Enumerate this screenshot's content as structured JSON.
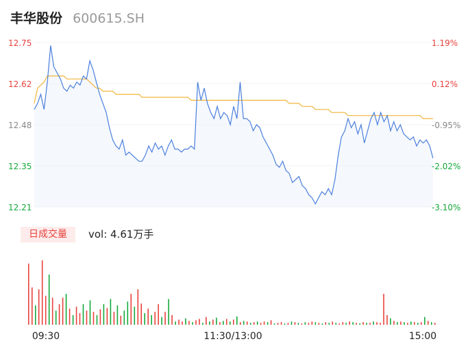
{
  "header": {
    "name": "丰华股份",
    "code": "600615.SH"
  },
  "colors": {
    "price_line": "#4a7fdd",
    "avg_line": "#f1b53b",
    "up": "#e8413d",
    "down": "#15a83c",
    "neutral": "#888888"
  },
  "volume": {
    "badge": "日成交量",
    "label": "vol: 4.61万手"
  },
  "chart_data": {
    "type": "line",
    "title": "",
    "y_left_ticks": [
      "12.75",
      "12.62",
      "12.48",
      "12.35",
      "12.21"
    ],
    "y_right_ticks": [
      "1.19%",
      "0.12%",
      "-0.95%",
      "-2.02%",
      "-3.10%"
    ],
    "x_ticks": [
      "09:30",
      "11:30/13:00",
      "15:00"
    ],
    "ylim": [
      12.21,
      12.75
    ],
    "series": [
      {
        "role": "price",
        "values": [
          12.53,
          12.55,
          12.58,
          12.53,
          12.62,
          12.74,
          12.67,
          12.65,
          12.63,
          12.6,
          12.59,
          12.61,
          12.6,
          12.62,
          12.61,
          12.64,
          12.63,
          12.69,
          12.66,
          12.62,
          12.58,
          12.55,
          12.52,
          12.47,
          12.43,
          12.41,
          12.4,
          12.43,
          12.38,
          12.39,
          12.38,
          12.37,
          12.36,
          12.36,
          12.38,
          12.41,
          12.39,
          12.42,
          12.4,
          12.41,
          12.38,
          12.41,
          12.43,
          12.4,
          12.4,
          12.39,
          12.4,
          12.4,
          12.41,
          12.4,
          12.62,
          12.56,
          12.6,
          12.55,
          12.52,
          12.5,
          12.54,
          12.5,
          12.52,
          12.51,
          12.48,
          12.54,
          12.5,
          12.62,
          12.5,
          12.5,
          12.49,
          12.46,
          12.48,
          12.47,
          12.44,
          12.42,
          12.4,
          12.38,
          12.35,
          12.34,
          12.36,
          12.33,
          12.32,
          12.29,
          12.3,
          12.31,
          12.28,
          12.27,
          12.25,
          12.24,
          12.22,
          12.24,
          12.26,
          12.25,
          12.27,
          12.25,
          12.3,
          12.38,
          12.44,
          12.46,
          12.5,
          12.47,
          12.49,
          12.45,
          12.48,
          12.42,
          12.46,
          12.5,
          12.52,
          12.48,
          12.52,
          12.49,
          12.51,
          12.46,
          12.49,
          12.46,
          12.48,
          12.45,
          12.44,
          12.43,
          12.44,
          12.41,
          12.43,
          12.42,
          12.43,
          12.41,
          12.37
        ]
      },
      {
        "role": "average",
        "values": [
          12.55,
          12.6,
          12.61,
          12.62,
          12.64,
          12.64,
          12.64,
          12.64,
          12.64,
          12.64,
          12.63,
          12.63,
          12.63,
          12.63,
          12.63,
          12.63,
          12.63,
          12.62,
          12.61,
          12.6,
          12.6,
          12.59,
          12.59,
          12.59,
          12.59,
          12.58,
          12.58,
          12.58,
          12.58,
          12.58,
          12.58,
          12.58,
          12.58,
          12.57,
          12.57,
          12.57,
          12.57,
          12.57,
          12.57,
          12.57,
          12.57,
          12.57,
          12.57,
          12.57,
          12.57,
          12.57,
          12.57,
          12.57,
          12.56,
          12.56,
          12.56,
          12.56,
          12.56,
          12.56,
          12.56,
          12.56,
          12.56,
          12.56,
          12.56,
          12.56,
          12.56,
          12.56,
          12.56,
          12.56,
          12.56,
          12.56,
          12.56,
          12.56,
          12.56,
          12.56,
          12.56,
          12.56,
          12.56,
          12.56,
          12.56,
          12.56,
          12.56,
          12.56,
          12.55,
          12.55,
          12.55,
          12.55,
          12.54,
          12.54,
          12.54,
          12.54,
          12.53,
          12.53,
          12.53,
          12.53,
          12.53,
          12.52,
          12.52,
          12.52,
          12.52,
          12.52,
          12.51,
          12.51,
          12.51,
          12.51,
          12.51,
          12.51,
          12.51,
          12.51,
          12.51,
          12.51,
          12.51,
          12.51,
          12.51,
          12.51,
          12.51,
          12.51,
          12.51,
          12.51,
          12.51,
          12.51,
          12.51,
          12.51,
          12.51,
          12.5,
          12.5,
          12.5,
          12.5
        ]
      }
    ],
    "volume_bars": [
      {
        "v": 0.95,
        "d": 1
      },
      {
        "v": 0.58,
        "d": 1
      },
      {
        "v": 0.3,
        "d": -1
      },
      {
        "v": 0.55,
        "d": 1
      },
      {
        "v": 1.0,
        "d": 1
      },
      {
        "v": 0.45,
        "d": 1
      },
      {
        "v": 0.78,
        "d": -1
      },
      {
        "v": 0.42,
        "d": 1
      },
      {
        "v": 0.22,
        "d": -1
      },
      {
        "v": 0.32,
        "d": 1
      },
      {
        "v": 0.42,
        "d": 1
      },
      {
        "v": 0.48,
        "d": -1
      },
      {
        "v": 0.25,
        "d": 1
      },
      {
        "v": 0.15,
        "d": -1
      },
      {
        "v": 0.28,
        "d": 1
      },
      {
        "v": 0.18,
        "d": 1
      },
      {
        "v": 0.32,
        "d": -1
      },
      {
        "v": 0.22,
        "d": 1
      },
      {
        "v": 0.38,
        "d": -1
      },
      {
        "v": 0.2,
        "d": 1
      },
      {
        "v": 0.15,
        "d": -1
      },
      {
        "v": 0.24,
        "d": 1
      },
      {
        "v": 0.32,
        "d": -1
      },
      {
        "v": 0.26,
        "d": 1
      },
      {
        "v": 0.4,
        "d": -1
      },
      {
        "v": 0.2,
        "d": 1
      },
      {
        "v": 0.3,
        "d": -1
      },
      {
        "v": 0.14,
        "d": 1
      },
      {
        "v": 0.22,
        "d": -1
      },
      {
        "v": 0.36,
        "d": -1
      },
      {
        "v": 0.48,
        "d": 1
      },
      {
        "v": 0.28,
        "d": -1
      },
      {
        "v": 0.55,
        "d": 1
      },
      {
        "v": 0.33,
        "d": 1
      },
      {
        "v": 0.18,
        "d": -1
      },
      {
        "v": 0.25,
        "d": 1
      },
      {
        "v": 0.15,
        "d": -1
      },
      {
        "v": 0.2,
        "d": 1
      },
      {
        "v": 0.32,
        "d": 1
      },
      {
        "v": 0.12,
        "d": -1
      },
      {
        "v": 0.2,
        "d": 1
      },
      {
        "v": 0.4,
        "d": -1
      },
      {
        "v": 0.15,
        "d": 1
      },
      {
        "v": 0.05,
        "d": -1
      },
      {
        "v": 0.08,
        "d": 1
      },
      {
        "v": 0.05,
        "d": 1
      },
      {
        "v": 0.1,
        "d": -1
      },
      {
        "v": 0.06,
        "d": 1
      },
      {
        "v": 0.04,
        "d": -1
      },
      {
        "v": 0.07,
        "d": 1
      },
      {
        "v": 0.09,
        "d": 1
      },
      {
        "v": 0.03,
        "d": -1
      },
      {
        "v": 0.12,
        "d": 1
      },
      {
        "v": 0.05,
        "d": -1
      },
      {
        "v": 0.08,
        "d": 1
      },
      {
        "v": 0.11,
        "d": -1
      },
      {
        "v": 0.04,
        "d": 1
      },
      {
        "v": 0.06,
        "d": -1
      },
      {
        "v": 0.09,
        "d": 1
      },
      {
        "v": 0.05,
        "d": -1
      },
      {
        "v": 0.08,
        "d": 1
      },
      {
        "v": 0.13,
        "d": -1
      },
      {
        "v": 0.04,
        "d": 1
      },
      {
        "v": 0.06,
        "d": -1
      },
      {
        "v": 0.05,
        "d": 1
      },
      {
        "v": 0.03,
        "d": -1
      },
      {
        "v": 0.04,
        "d": 1
      },
      {
        "v": 0.05,
        "d": -1
      },
      {
        "v": 0.03,
        "d": 1
      },
      {
        "v": 0.05,
        "d": 1
      },
      {
        "v": 0.04,
        "d": -1
      },
      {
        "v": 0.07,
        "d": 1
      },
      {
        "v": 0.02,
        "d": -1
      },
      {
        "v": 0.03,
        "d": 1
      },
      {
        "v": 0.04,
        "d": 1
      },
      {
        "v": 0.02,
        "d": -1
      },
      {
        "v": 0.03,
        "d": 1
      },
      {
        "v": 0.05,
        "d": -1
      },
      {
        "v": 0.04,
        "d": 1
      },
      {
        "v": 0.03,
        "d": -1
      },
      {
        "v": 0.02,
        "d": 1
      },
      {
        "v": 0.04,
        "d": -1
      },
      {
        "v": 0.03,
        "d": 1
      },
      {
        "v": 0.05,
        "d": 1
      },
      {
        "v": 0.04,
        "d": -1
      },
      {
        "v": 0.03,
        "d": 1
      },
      {
        "v": 0.02,
        "d": -1
      },
      {
        "v": 0.04,
        "d": 1
      },
      {
        "v": 0.03,
        "d": -1
      },
      {
        "v": 0.05,
        "d": 1
      },
      {
        "v": 0.03,
        "d": -1
      },
      {
        "v": 0.02,
        "d": 1
      },
      {
        "v": 0.04,
        "d": 1
      },
      {
        "v": 0.03,
        "d": -1
      },
      {
        "v": 0.05,
        "d": 1
      },
      {
        "v": 0.04,
        "d": -1
      },
      {
        "v": 0.03,
        "d": 1
      },
      {
        "v": 0.02,
        "d": -1
      },
      {
        "v": 0.04,
        "d": 1
      },
      {
        "v": 0.03,
        "d": -1
      },
      {
        "v": 0.03,
        "d": 1
      },
      {
        "v": 0.05,
        "d": -1
      },
      {
        "v": 0.04,
        "d": 1
      },
      {
        "v": 0.03,
        "d": 1
      },
      {
        "v": 0.48,
        "d": 1
      },
      {
        "v": 0.15,
        "d": 1
      },
      {
        "v": 0.1,
        "d": -1
      },
      {
        "v": 0.06,
        "d": 1
      },
      {
        "v": 0.04,
        "d": -1
      },
      {
        "v": 0.05,
        "d": 1
      },
      {
        "v": 0.04,
        "d": -1
      },
      {
        "v": 0.03,
        "d": 1
      },
      {
        "v": 0.05,
        "d": -1
      },
      {
        "v": 0.04,
        "d": 1
      },
      {
        "v": 0.03,
        "d": -1
      },
      {
        "v": 0.04,
        "d": 1
      },
      {
        "v": 0.12,
        "d": -1
      },
      {
        "v": 0.06,
        "d": 1
      },
      {
        "v": 0.04,
        "d": -1
      },
      {
        "v": 0.03,
        "d": 1
      }
    ]
  }
}
